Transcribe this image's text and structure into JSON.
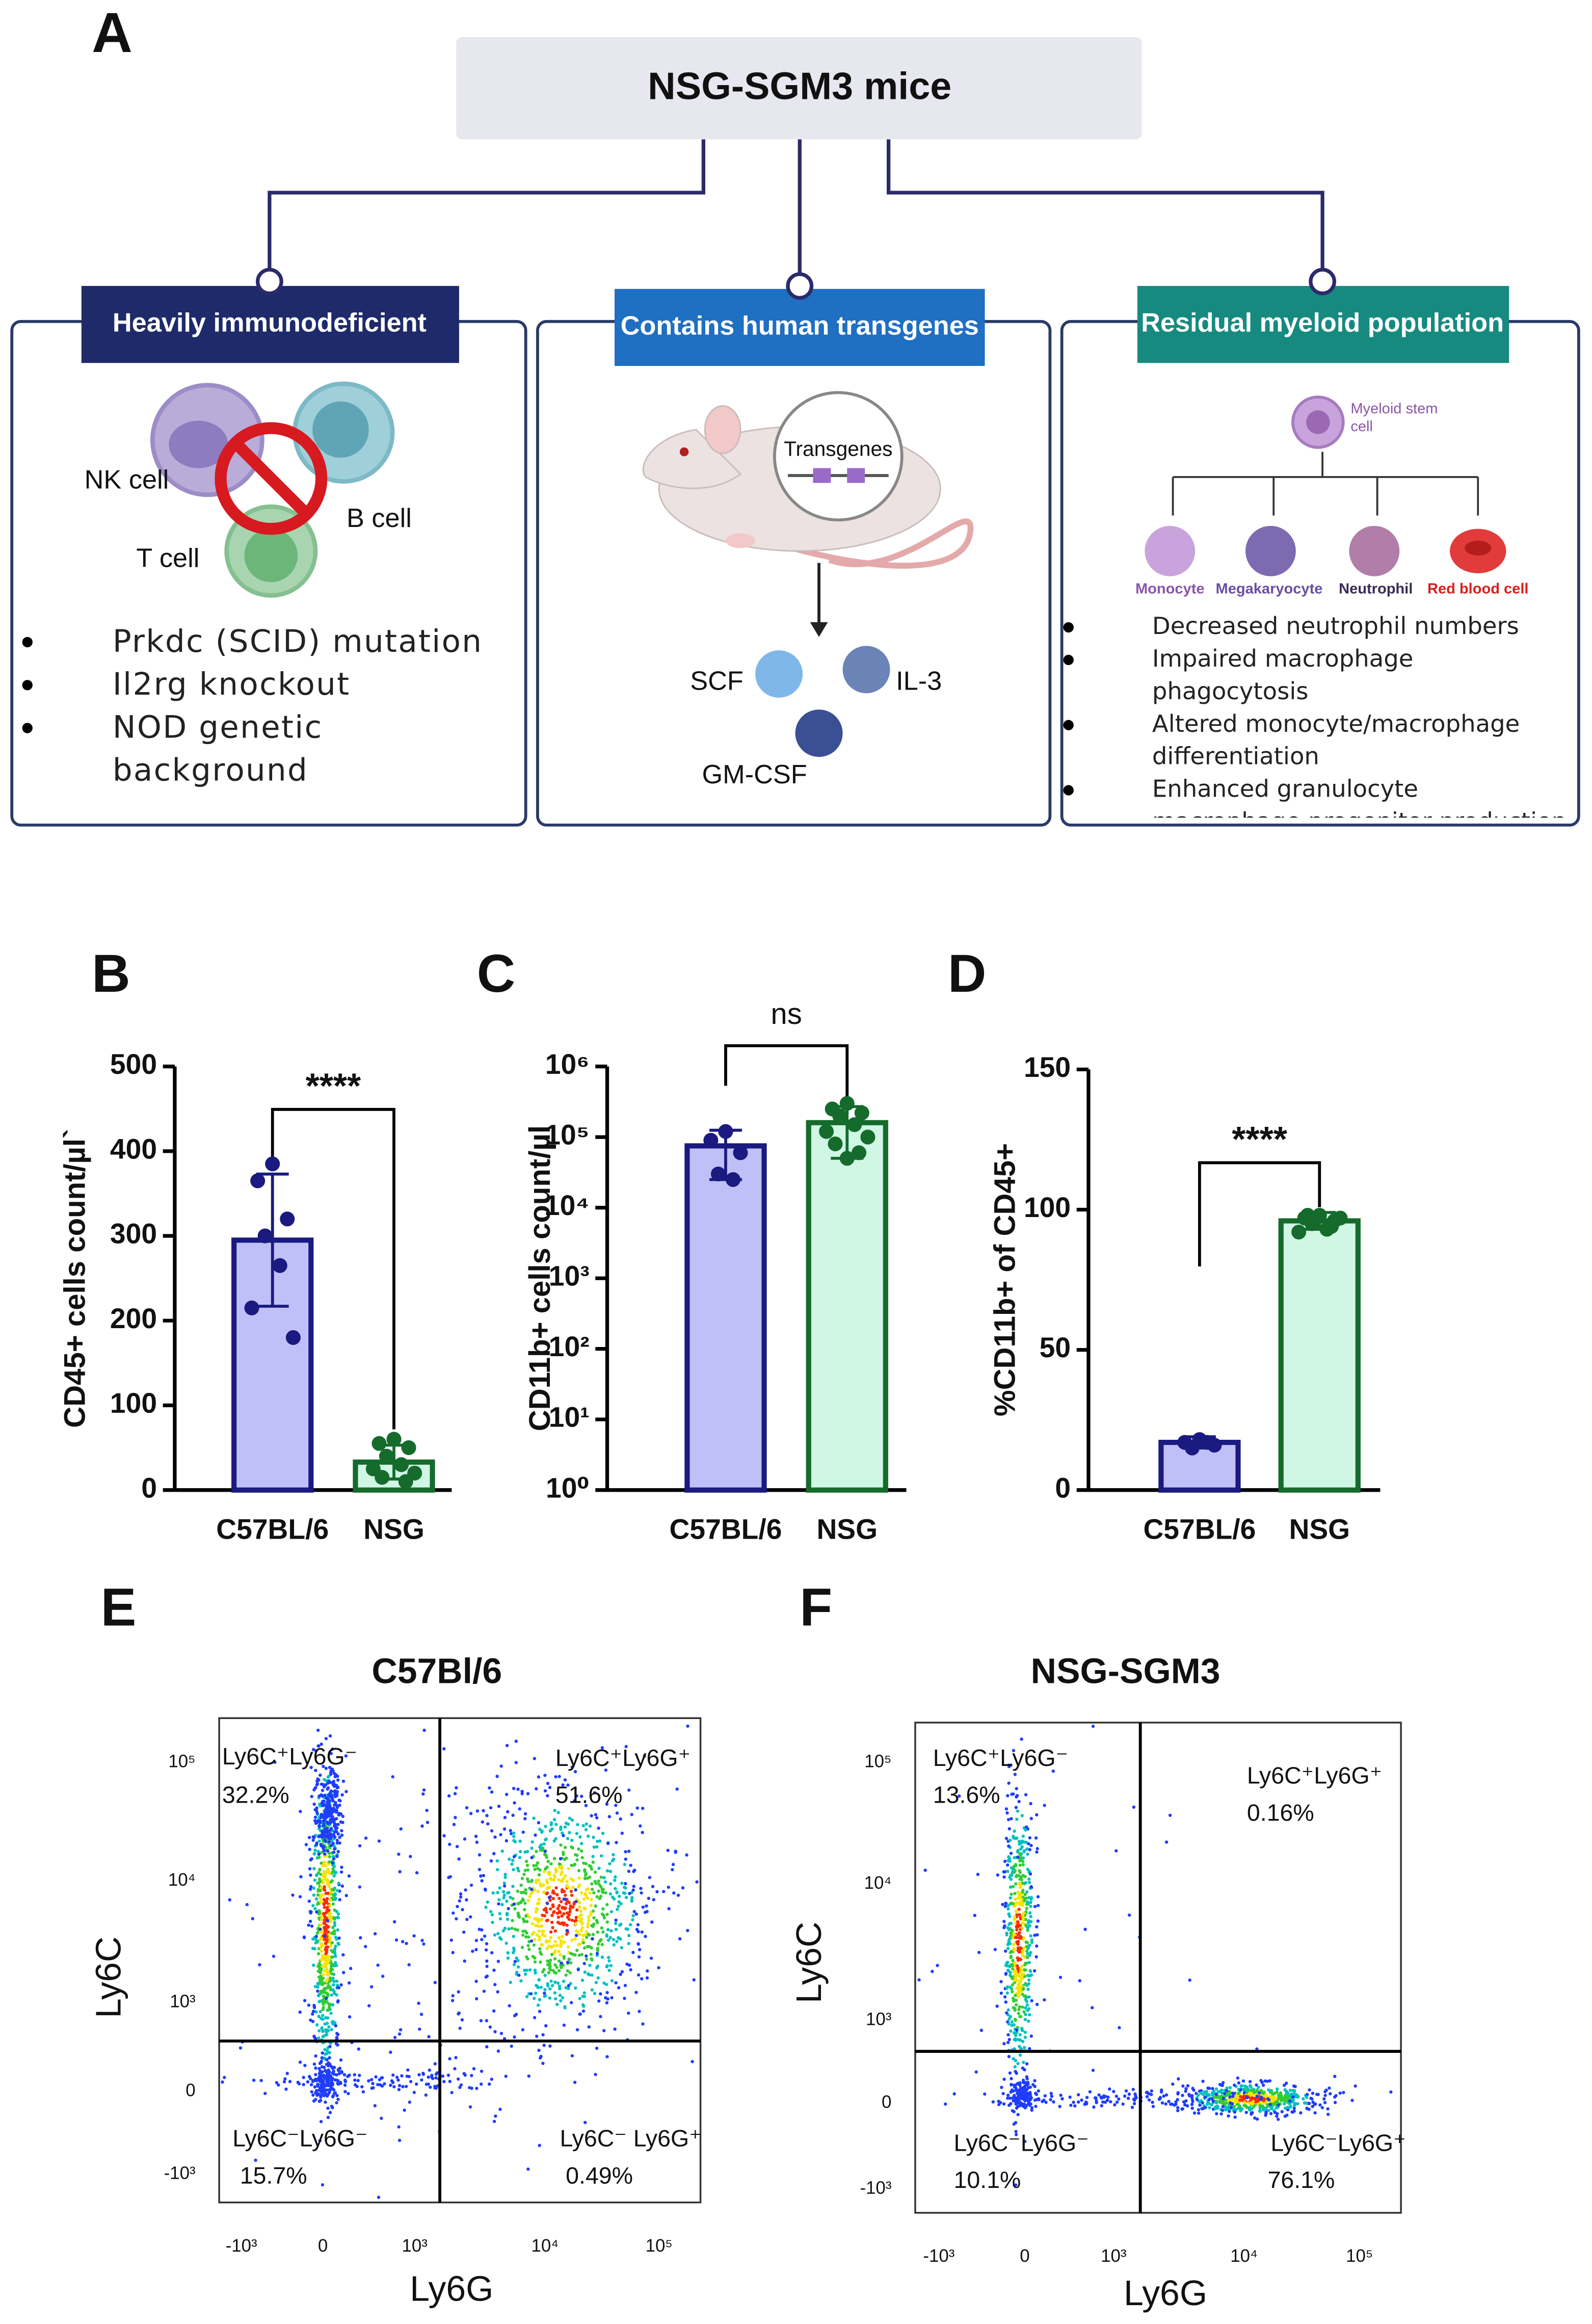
{
  "panel_a": {
    "letter": "A",
    "title": "NSG-SGM3 mice",
    "boxes": [
      {
        "heading": "Heavily immunodeficient",
        "labels": [
          "NK cell",
          "B cell",
          "T cell"
        ],
        "bullets": [
          "Prkdc (SCID) mutation",
          "Il2rg knockout",
          "NOD genetic background"
        ]
      },
      {
        "heading": "Contains human transgenes",
        "labels": [
          "Transgenes",
          "SCF",
          "IL-3",
          "GM-CSF"
        ]
      },
      {
        "heading": "Residual myeloid population",
        "labels": [
          "Myeloid stem cell",
          "Monocyte",
          "Megakaryocyte",
          "Neutrophil",
          "Red blood cell"
        ],
        "bullets": [
          "Decreased neutrophil numbers",
          "Impaired macrophage phagocytosis",
          "Altered monocyte/macrophage differentiation",
          "Enhanced granulocyte macrophage progenitor production"
        ]
      }
    ]
  },
  "chart_data": [
    {
      "type": "bar",
      "letter": "B",
      "y_label": "CD45+ cells count/µl`",
      "annotation": "****",
      "categories": [
        "C57BL/6",
        "NSG"
      ],
      "values": [
        295,
        33
      ],
      "errors": [
        78,
        20
      ],
      "points": [
        [
          385,
          365,
          320,
          300,
          265,
          215,
          180
        ],
        [
          60,
          55,
          50,
          40,
          30,
          25,
          20,
          15,
          10
        ]
      ],
      "colors": [
        "#c0c0f8",
        "#cff7e4"
      ],
      "edge_colors": [
        "#1a1a80",
        "#156b2c"
      ],
      "ylim": [
        0,
        500
      ],
      "yticks": [
        0,
        100,
        200,
        300,
        400,
        500
      ],
      "log_scale": false
    },
    {
      "type": "bar",
      "letter": "C",
      "y_label": "CD11b+ cells count/µl",
      "annotation": "ns",
      "categories": [
        "C57BL/6",
        "NSG"
      ],
      "values": [
        75000,
        160000
      ],
      "errors": [
        50000,
        110000
      ],
      "points": [
        [
          120000,
          90000,
          60000,
          30000,
          25000
        ],
        [
          300000,
          250000,
          220000,
          200000,
          150000,
          120000,
          100000,
          80000,
          60000,
          50000
        ]
      ],
      "colors": [
        "#c0c0f8",
        "#cff7e4"
      ],
      "edge_colors": [
        "#1a1a80",
        "#156b2c"
      ],
      "ylim": [
        1,
        1000000
      ],
      "yticks": [
        {
          "value": 1,
          "label": "10⁰"
        },
        {
          "value": 10,
          "label": "10¹"
        },
        {
          "value": 100,
          "label": "10²"
        },
        {
          "value": 1000,
          "label": "10³"
        },
        {
          "value": 10000,
          "label": "10⁴"
        },
        {
          "value": 100000,
          "label": "10⁵"
        },
        {
          "value": 1000000,
          "label": "10⁶"
        }
      ],
      "log_scale": true
    },
    {
      "type": "bar",
      "letter": "D",
      "y_label": "%CD11b+ of CD45+",
      "annotation": "****",
      "categories": [
        "C57BL/6",
        "NSG"
      ],
      "values": [
        17,
        96
      ],
      "errors": [
        2,
        3
      ],
      "points": [
        [
          18,
          17,
          16,
          15,
          17
        ],
        [
          98,
          97,
          96,
          95,
          93,
          92,
          97,
          98,
          94
        ]
      ],
      "colors": [
        "#c0c0f8",
        "#cff7e4"
      ],
      "edge_colors": [
        "#1a1a80",
        "#156b2c"
      ],
      "ylim": [
        0,
        150
      ],
      "yticks": [
        0,
        50,
        100,
        150
      ],
      "log_scale": false
    }
  ],
  "flow_panels": [
    {
      "letter": "E",
      "title": "C57Bl/6",
      "x_label": "Ly6G",
      "y_label": "Ly6C",
      "xticks": [
        "-10³",
        "0",
        "10³",
        "10⁴",
        "10⁵"
      ],
      "yticks": [
        "10⁵",
        "10⁴",
        "10³",
        "0",
        "-10³"
      ],
      "gates": [
        {
          "name": "Ly6C⁺Ly6G⁻",
          "percent": "32.2%"
        },
        {
          "name": "Ly6C⁺Ly6G⁺",
          "percent": "51.6%"
        },
        {
          "name": "Ly6C⁻Ly6G⁻",
          "percent": "15.7%"
        },
        {
          "name": "Ly6C⁻ Ly6G⁺",
          "percent": "0.49%"
        }
      ]
    },
    {
      "letter": "F",
      "title": "NSG-SGM3",
      "x_label": "Ly6G",
      "y_label": "Ly6C",
      "xticks": [
        "-10³",
        "0",
        "10³",
        "10⁴",
        "10⁵"
      ],
      "yticks": [
        "10⁵",
        "10⁴",
        "10³",
        "0",
        "-10³"
      ],
      "gates": [
        {
          "name": "Ly6C⁺Ly6G⁻",
          "percent": "13.6%"
        },
        {
          "name": "Ly6C⁺Ly6G⁺",
          "percent": "0.16%"
        },
        {
          "name": "Ly6C⁻Ly6G⁻",
          "percent": "10.1%"
        },
        {
          "name": "Ly6C⁻Ly6G⁺",
          "percent": "76.1%"
        }
      ]
    }
  ]
}
